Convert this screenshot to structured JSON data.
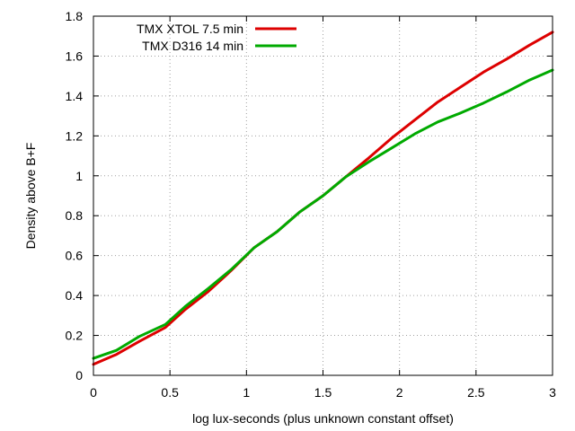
{
  "chart_data": {
    "type": "line",
    "title": "",
    "xlabel": "log lux-seconds (plus unknown constant offset)",
    "ylabel": "Density above B+F",
    "xlim": [
      0,
      3
    ],
    "ylim": [
      0,
      1.8
    ],
    "xticks": [
      "0",
      "0.5",
      "1",
      "1.5",
      "2",
      "2.5",
      "3"
    ],
    "yticks": [
      "0",
      "0.2",
      "0.4",
      "0.6",
      "0.8",
      "1",
      "1.2",
      "1.4",
      "1.6",
      "1.8"
    ],
    "grid": true,
    "legend_position": "top-left",
    "series": [
      {
        "name": "TMX XTOL 7.5 min",
        "color": "#dd0000",
        "x": [
          0,
          0.15,
          0.3,
          0.47,
          0.6,
          0.75,
          0.9,
          1.05,
          1.2,
          1.35,
          1.5,
          1.65,
          1.8,
          1.95,
          2.1,
          2.25,
          2.4,
          2.55,
          2.7,
          2.85,
          3.0
        ],
        "y": [
          0.055,
          0.105,
          0.17,
          0.24,
          0.33,
          0.42,
          0.525,
          0.64,
          0.72,
          0.82,
          0.9,
          0.995,
          1.09,
          1.19,
          1.28,
          1.37,
          1.445,
          1.52,
          1.585,
          1.655,
          1.72
        ]
      },
      {
        "name": "TMX D316 14 min",
        "color": "#00aa00",
        "x": [
          0,
          0.15,
          0.3,
          0.47,
          0.6,
          0.75,
          0.9,
          1.05,
          1.2,
          1.35,
          1.5,
          1.65,
          1.8,
          1.95,
          2.1,
          2.25,
          2.4,
          2.55,
          2.7,
          2.85,
          3.0
        ],
        "y": [
          0.085,
          0.125,
          0.195,
          0.255,
          0.345,
          0.435,
          0.53,
          0.64,
          0.72,
          0.82,
          0.9,
          0.995,
          1.07,
          1.14,
          1.21,
          1.27,
          1.315,
          1.365,
          1.42,
          1.48,
          1.53
        ]
      }
    ]
  }
}
